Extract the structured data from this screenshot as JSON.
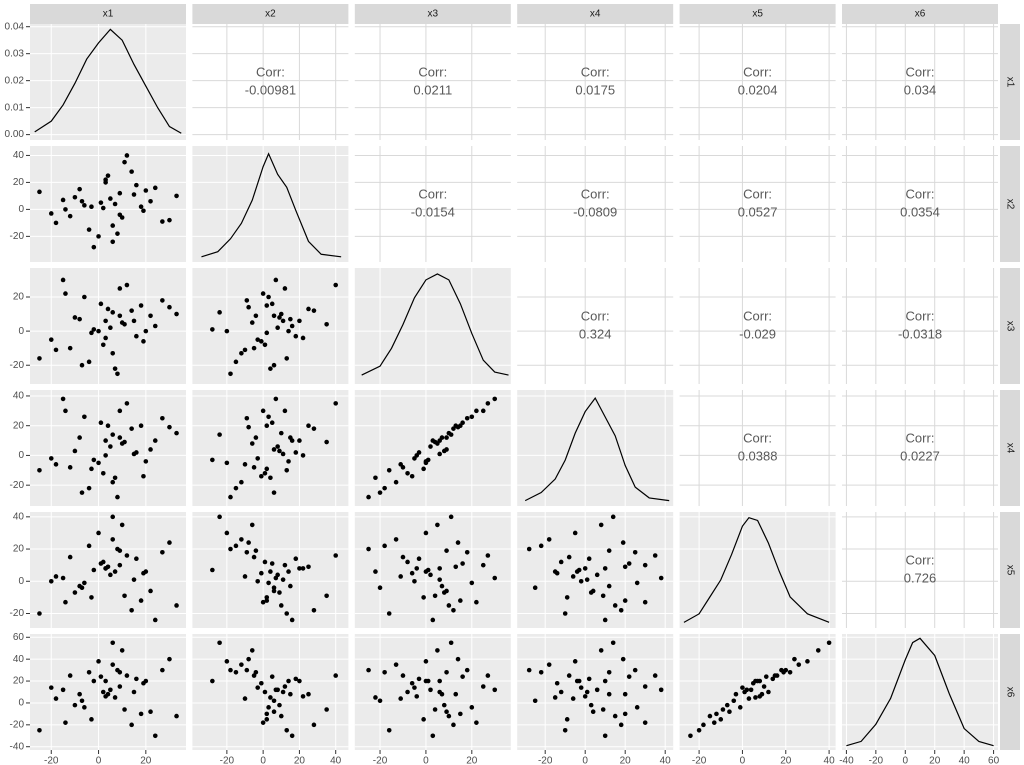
{
  "chart_data": {
    "type": "scatter-matrix",
    "corr_label": "Corr:",
    "variables": [
      {
        "name": "x1",
        "lim": [
          -29,
          37
        ],
        "ticks": [
          -20,
          0,
          20
        ],
        "density_ylim": [
          -0.002,
          0.041
        ],
        "density_ticks": [
          {
            "value": 0,
            "label": "0.00"
          },
          {
            "value": 0.01,
            "label": "0.01"
          },
          {
            "value": 0.02,
            "label": "0.02"
          },
          {
            "value": 0.03,
            "label": "0.03"
          },
          {
            "value": 0.04,
            "label": "0.04"
          }
        ],
        "density_x": [
          -27,
          -20,
          -15,
          -10,
          -5,
          0,
          5,
          10,
          15,
          20,
          25,
          30,
          35
        ],
        "density_y": [
          0.001,
          0.005,
          0.011,
          0.019,
          0.028,
          0.034,
          0.039,
          0.035,
          0.026,
          0.018,
          0.01,
          0.003,
          0.0005
        ],
        "sample": [
          5,
          -12,
          18,
          3,
          -4,
          22,
          9,
          -20,
          14,
          0,
          7,
          -8,
          27,
          2,
          11,
          -15,
          6,
          33,
          -2,
          16,
          -6,
          10,
          -25,
          4,
          19,
          -10,
          8,
          1,
          24,
          -18,
          12,
          -3,
          6,
          15,
          -7,
          30,
          3,
          -14,
          20,
          9
        ]
      },
      {
        "name": "x2",
        "lim": [
          -39,
          47
        ],
        "ticks": [
          -20,
          0,
          20,
          40
        ],
        "density_ylim": [
          -0.002,
          0.043
        ],
        "density_x": [
          -34,
          -25,
          -18,
          -12,
          -6,
          0,
          3,
          8,
          13,
          18,
          25,
          32,
          43
        ],
        "density_y": [
          0,
          0.002,
          0.007,
          0.013,
          0.022,
          0.035,
          0.04,
          0.032,
          0.027,
          0.018,
          0.006,
          0.001,
          0
        ],
        "sample": [
          8,
          -5,
          2,
          20,
          -15,
          6,
          12,
          -3,
          28,
          -20,
          4,
          15,
          -9,
          1,
          35,
          7,
          -12,
          10,
          -28,
          18,
          3,
          -6,
          13,
          25,
          -1,
          9,
          -18,
          5,
          16,
          -10,
          40,
          2,
          -24,
          11,
          6,
          -8,
          22,
          0,
          14,
          -4
        ]
      },
      {
        "name": "x3",
        "lim": [
          -31,
          37
        ],
        "ticks": [
          -20,
          0,
          20
        ],
        "density_ylim": [
          -0.002,
          0.037
        ],
        "density_x": [
          -28,
          -20,
          -15,
          -10,
          -5,
          0,
          5,
          10,
          15,
          20,
          25,
          30,
          36
        ],
        "density_y": [
          0.001,
          0.004,
          0.01,
          0.018,
          0.027,
          0.033,
          0.035,
          0.033,
          0.025,
          0.015,
          0.006,
          0.002,
          0.001
        ],
        "sample": [
          2,
          -10,
          15,
          6,
          -18,
          9,
          25,
          -5,
          12,
          0,
          -22,
          7,
          18,
          -8,
          4,
          30,
          -13,
          10,
          1,
          -3,
          20,
          5,
          -16,
          13,
          -6,
          8,
          -25,
          16,
          3,
          -11,
          27,
          -1,
          11,
          6,
          -20,
          14,
          -4,
          22,
          0,
          9
        ]
      },
      {
        "name": "x4",
        "lim": [
          -34,
          44
        ],
        "ticks": [
          -20,
          0,
          20,
          40
        ],
        "density_ylim": [
          -0.002,
          0.041
        ],
        "density_x": [
          -30,
          -22,
          -15,
          -10,
          -5,
          0,
          5,
          10,
          15,
          20,
          25,
          32,
          42
        ],
        "density_y": [
          0,
          0.003,
          0.008,
          0.015,
          0.025,
          0.033,
          0.038,
          0.031,
          0.024,
          0.013,
          0.005,
          0.001,
          0
        ],
        "sample": [
          6,
          -8,
          20,
          10,
          -22,
          4,
          30,
          -2,
          18,
          -5,
          -15,
          12,
          25,
          -12,
          9,
          38,
          -18,
          15,
          -3,
          2,
          26,
          8,
          -10,
          20,
          -14,
          3,
          -28,
          22,
          10,
          -6,
          35,
          -9,
          14,
          1,
          -25,
          19,
          0,
          30,
          -4,
          12
        ]
      },
      {
        "name": "x5",
        "lim": [
          -29,
          43
        ],
        "ticks": [
          -20,
          0,
          20,
          40
        ],
        "density_ylim": [
          -0.002,
          0.039
        ],
        "density_x": [
          -27,
          -20,
          -15,
          -10,
          -5,
          0,
          3,
          7,
          12,
          17,
          22,
          30,
          40
        ],
        "density_y": [
          0,
          0.003,
          0.009,
          0.015,
          0.024,
          0.034,
          0.037,
          0.036,
          0.028,
          0.018,
          0.009,
          0.003,
          0
        ],
        "sample": [
          4,
          15,
          -12,
          8,
          22,
          -6,
          10,
          0,
          -18,
          30,
          6,
          -3,
          18,
          12,
          -9,
          2,
          26,
          -15,
          7,
          14,
          -1,
          35,
          -20,
          9,
          5,
          -7,
          20,
          11,
          -24,
          3,
          16,
          -10,
          40,
          1,
          -4,
          24,
          8,
          -13,
          6,
          19
        ]
      },
      {
        "name": "x6",
        "lim": [
          -43,
          63
        ],
        "ticks": [
          -40,
          -20,
          0,
          20,
          40,
          60
        ],
        "density_ylim": [
          -0.001,
          0.026
        ],
        "density_x": [
          -40,
          -30,
          -20,
          -10,
          0,
          5,
          10,
          20,
          30,
          40,
          50,
          60
        ],
        "density_y": [
          0,
          0.001,
          0.005,
          0.011,
          0.02,
          0.024,
          0.025,
          0.021,
          0.012,
          0.004,
          0.001,
          0
        ],
        "sample": [
          12,
          25,
          -10,
          20,
          28,
          -8,
          15,
          14,
          -20,
          38,
          5,
          8,
          30,
          10,
          -6,
          12,
          35,
          -12,
          20,
          22,
          -4,
          48,
          -25,
          8,
          18,
          -2,
          30,
          24,
          -30,
          4,
          25,
          -15,
          55,
          10,
          2,
          40,
          6,
          -18,
          20,
          28
        ]
      }
    ],
    "correlations": [
      [
        -0.00981,
        0.0211,
        0.0175,
        0.0204,
        0.034
      ],
      [
        -0.0154,
        -0.0809,
        0.0527,
        0.0354
      ],
      [
        0.324,
        -0.029,
        -0.0318
      ],
      [
        0.0388,
        0.0227
      ],
      [
        0.726
      ]
    ]
  }
}
